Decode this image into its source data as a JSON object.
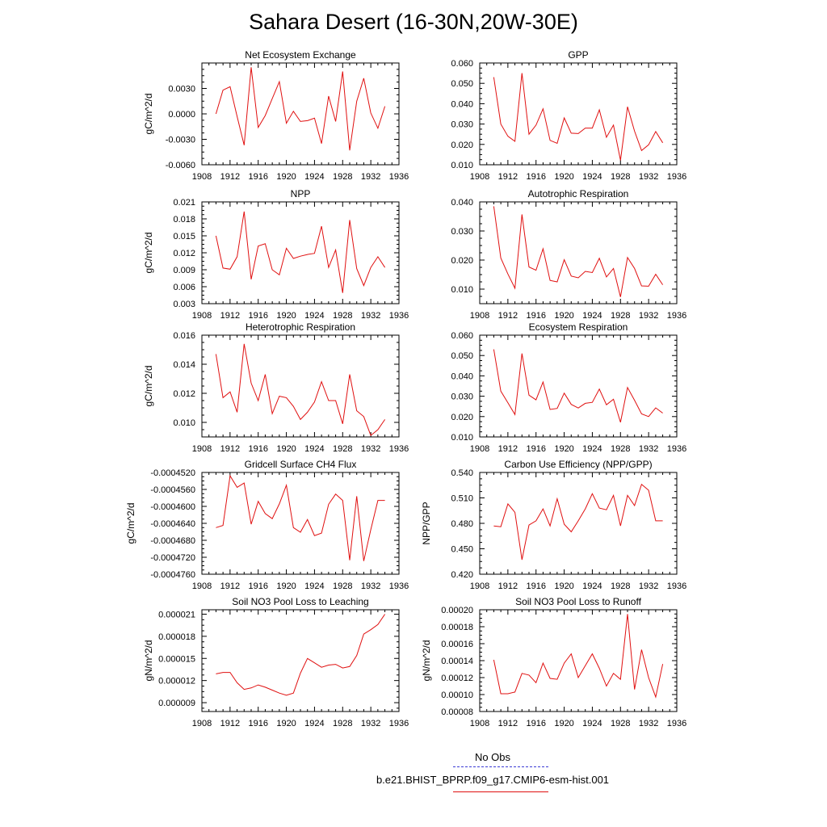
{
  "title": "Sahara Desert (16-30N,20W-30E)",
  "legend": {
    "obs_label": "No Obs",
    "case_label": "b.e21.BHIST_BPRP.f09_g17.CMIP6-esm-hist.001",
    "obs_color": "#3b3bd6",
    "case_color": "#e01010"
  },
  "chart_data": [
    {
      "type": "line",
      "title": "Net Ecosystem Exchange",
      "ylabel": "gC/m^2/d",
      "xlim": [
        1908,
        1936
      ],
      "ylim": [
        -0.006,
        0.006
      ],
      "xticks": [
        1908,
        1912,
        1916,
        1920,
        1924,
        1928,
        1932,
        1936
      ],
      "xtick_labels": [
        "1908",
        "1912",
        "1916",
        "1920",
        "1924",
        "1928",
        "1932",
        "1936"
      ],
      "yticks": [
        -0.006,
        -0.003,
        0.0,
        0.003
      ],
      "ytick_labels": [
        "-0.0060",
        "-0.0030",
        "0.0000",
        "0.0030"
      ],
      "x": [
        1910,
        1911,
        1912,
        1913,
        1914,
        1915,
        1916,
        1917,
        1918,
        1919,
        1920,
        1921,
        1922,
        1923,
        1924,
        1925,
        1926,
        1927,
        1928,
        1929,
        1930,
        1931,
        1932,
        1933,
        1934
      ],
      "values": [
        0.0,
        0.0028,
        0.0032,
        -0.0003,
        -0.0037,
        0.0055,
        -0.0016,
        -0.0002,
        0.0018,
        0.0038,
        -0.0011,
        0.0003,
        -0.0009,
        -0.0008,
        -0.0005,
        -0.0035,
        0.0021,
        -0.0009,
        0.005,
        -0.0043,
        0.0015,
        0.0042,
        0.0001,
        -0.0017,
        0.0009
      ],
      "color": "#e01010"
    },
    {
      "type": "line",
      "title": "GPP",
      "ylabel": "",
      "xlim": [
        1908,
        1936
      ],
      "ylim": [
        0.01,
        0.06
      ],
      "xticks": [
        1908,
        1912,
        1916,
        1920,
        1924,
        1928,
        1932,
        1936
      ],
      "xtick_labels": [
        "1908",
        "1912",
        "1916",
        "1920",
        "1924",
        "1928",
        "1932",
        "1936"
      ],
      "yticks": [
        0.01,
        0.02,
        0.03,
        0.04,
        0.05,
        0.06
      ],
      "ytick_labels": [
        "0.010",
        "0.020",
        "0.030",
        "0.040",
        "0.050",
        "0.060"
      ],
      "x": [
        1910,
        1911,
        1912,
        1913,
        1914,
        1915,
        1916,
        1917,
        1918,
        1919,
        1920,
        1921,
        1922,
        1923,
        1924,
        1925,
        1926,
        1927,
        1928,
        1929,
        1930,
        1931,
        1932,
        1933,
        1934
      ],
      "values": [
        0.053,
        0.03,
        0.024,
        0.0215,
        0.055,
        0.025,
        0.0295,
        0.0375,
        0.022,
        0.0205,
        0.033,
        0.0255,
        0.0253,
        0.028,
        0.028,
        0.037,
        0.0235,
        0.0295,
        0.0122,
        0.0385,
        0.0265,
        0.017,
        0.0198,
        0.0263,
        0.0208
      ],
      "color": "#e01010"
    },
    {
      "type": "line",
      "title": "NPP",
      "ylabel": "gC/m^2/d",
      "xlim": [
        1908,
        1936
      ],
      "ylim": [
        0.003,
        0.021
      ],
      "xticks": [
        1908,
        1912,
        1916,
        1920,
        1924,
        1928,
        1932,
        1936
      ],
      "xtick_labels": [
        "1908",
        "1912",
        "1916",
        "1920",
        "1924",
        "1928",
        "1932",
        "1936"
      ],
      "yticks": [
        0.003,
        0.006,
        0.009,
        0.012,
        0.015,
        0.018,
        0.021
      ],
      "ytick_labels": [
        "0.003",
        "0.006",
        "0.009",
        "0.012",
        "0.015",
        "0.018",
        "0.021"
      ],
      "x": [
        1910,
        1911,
        1912,
        1913,
        1914,
        1915,
        1916,
        1917,
        1918,
        1919,
        1920,
        1921,
        1922,
        1923,
        1924,
        1925,
        1926,
        1927,
        1928,
        1929,
        1930,
        1931,
        1932,
        1933,
        1934
      ],
      "values": [
        0.015,
        0.0093,
        0.0091,
        0.0113,
        0.0193,
        0.0073,
        0.0132,
        0.0136,
        0.009,
        0.0081,
        0.0128,
        0.011,
        0.0114,
        0.0117,
        0.0119,
        0.0167,
        0.0094,
        0.0125,
        0.0049,
        0.0178,
        0.0092,
        0.0062,
        0.0094,
        0.0113,
        0.0094
      ],
      "color": "#e01010"
    },
    {
      "type": "line",
      "title": "Autotrophic Respiration",
      "ylabel": "",
      "xlim": [
        1908,
        1936
      ],
      "ylim": [
        0.005,
        0.04
      ],
      "xticks": [
        1908,
        1912,
        1916,
        1920,
        1924,
        1928,
        1932,
        1936
      ],
      "xtick_labels": [
        "1908",
        "1912",
        "1916",
        "1920",
        "1924",
        "1928",
        "1932",
        "1936"
      ],
      "yticks": [
        0.01,
        0.02,
        0.03,
        0.04
      ],
      "ytick_labels": [
        "0.010",
        "0.020",
        "0.030",
        "0.040"
      ],
      "x": [
        1910,
        1911,
        1912,
        1913,
        1914,
        1915,
        1916,
        1917,
        1918,
        1919,
        1920,
        1921,
        1922,
        1923,
        1924,
        1925,
        1926,
        1927,
        1928,
        1929,
        1930,
        1931,
        1932,
        1933,
        1934
      ],
      "values": [
        0.0385,
        0.0207,
        0.0152,
        0.0103,
        0.0357,
        0.0176,
        0.0165,
        0.0239,
        0.013,
        0.0125,
        0.0201,
        0.0145,
        0.0139,
        0.0161,
        0.0157,
        0.0206,
        0.0142,
        0.0171,
        0.0073,
        0.0209,
        0.0171,
        0.0111,
        0.011,
        0.0151,
        0.0115
      ],
      "color": "#e01010"
    },
    {
      "type": "line",
      "title": "Heterotrophic Respiration",
      "ylabel": "gC/m^2/d",
      "xlim": [
        1908,
        1936
      ],
      "ylim": [
        0.009,
        0.016
      ],
      "xticks": [
        1908,
        1912,
        1916,
        1920,
        1924,
        1928,
        1932,
        1936
      ],
      "xtick_labels": [
        "1908",
        "1912",
        "1916",
        "1920",
        "1924",
        "1928",
        "1932",
        "1936"
      ],
      "yticks": [
        0.01,
        0.012,
        0.014,
        0.016
      ],
      "ytick_labels": [
        "0.010",
        "0.012",
        "0.014",
        "0.016"
      ],
      "x": [
        1910,
        1911,
        1912,
        1913,
        1914,
        1915,
        1916,
        1917,
        1918,
        1919,
        1920,
        1921,
        1922,
        1923,
        1924,
        1925,
        1926,
        1927,
        1928,
        1929,
        1930,
        1931,
        1932,
        1933,
        1934
      ],
      "values": [
        0.0147,
        0.0117,
        0.0121,
        0.0107,
        0.0154,
        0.0127,
        0.0115,
        0.0133,
        0.0106,
        0.0118,
        0.0117,
        0.0111,
        0.0102,
        0.0107,
        0.0114,
        0.0128,
        0.0115,
        0.0115,
        0.0099,
        0.0133,
        0.0108,
        0.0104,
        0.0091,
        0.0095,
        0.0102
      ],
      "color": "#e01010"
    },
    {
      "type": "line",
      "title": "Ecosystem Respiration",
      "ylabel": "",
      "xlim": [
        1908,
        1936
      ],
      "ylim": [
        0.01,
        0.06
      ],
      "xticks": [
        1908,
        1912,
        1916,
        1920,
        1924,
        1928,
        1932,
        1936
      ],
      "xtick_labels": [
        "1908",
        "1912",
        "1916",
        "1920",
        "1924",
        "1928",
        "1932",
        "1936"
      ],
      "yticks": [
        0.01,
        0.02,
        0.03,
        0.04,
        0.05,
        0.06
      ],
      "ytick_labels": [
        "0.010",
        "0.020",
        "0.030",
        "0.040",
        "0.050",
        "0.060"
      ],
      "x": [
        1910,
        1911,
        1912,
        1913,
        1914,
        1915,
        1916,
        1917,
        1918,
        1919,
        1920,
        1921,
        1922,
        1923,
        1924,
        1925,
        1926,
        1927,
        1928,
        1929,
        1930,
        1931,
        1932,
        1933,
        1934
      ],
      "values": [
        0.053,
        0.0325,
        0.0268,
        0.021,
        0.051,
        0.0305,
        0.0282,
        0.037,
        0.0235,
        0.024,
        0.0315,
        0.026,
        0.0242,
        0.0265,
        0.027,
        0.0335,
        0.0258,
        0.0285,
        0.0172,
        0.0343,
        0.028,
        0.0213,
        0.02,
        0.0243,
        0.0217
      ],
      "color": "#e01010"
    },
    {
      "type": "line",
      "title": "Gridcell Surface CH4 Flux",
      "ylabel": "gC/m^2/d",
      "xlim": [
        1908,
        1936
      ],
      "ylim": [
        -0.000476,
        -0.000452
      ],
      "xticks": [
        1908,
        1912,
        1916,
        1920,
        1924,
        1928,
        1932,
        1936
      ],
      "xtick_labels": [
        "1908",
        "1912",
        "1916",
        "1920",
        "1924",
        "1928",
        "1932",
        "1936"
      ],
      "yticks": [
        -0.000476,
        -0.000472,
        -0.000468,
        -0.000464,
        -0.00046,
        -0.000456,
        -0.000452
      ],
      "ytick_labels": [
        "-0.0004760",
        "-0.0004720",
        "-0.0004680",
        "-0.0004640",
        "-0.0004600",
        "-0.0004560",
        "-0.0004520"
      ],
      "x": [
        1910,
        1911,
        1912,
        1913,
        1914,
        1915,
        1916,
        1917,
        1918,
        1919,
        1920,
        1921,
        1922,
        1923,
        1924,
        1925,
        1926,
        1927,
        1928,
        1929,
        1930,
        1931,
        1932,
        1933,
        1934
      ],
      "values": [
        -0.000465,
        -0.0004645,
        -0.0004528,
        -0.0004555,
        -0.0004545,
        -0.0004642,
        -0.0004588,
        -0.0004617,
        -0.0004629,
        -0.0004594,
        -0.000455,
        -0.000465,
        -0.0004661,
        -0.0004631,
        -0.0004669,
        -0.0004663,
        -0.0004595,
        -0.0004571,
        -0.0004586,
        -0.0004727,
        -0.0004576,
        -0.0004729,
        -0.0004655,
        -0.0004586,
        -0.0004586
      ],
      "color": "#e01010"
    },
    {
      "type": "line",
      "title": "Carbon Use Efficiency (NPP/GPP)",
      "ylabel": "NPP/GPP",
      "xlim": [
        1908,
        1936
      ],
      "ylim": [
        0.42,
        0.54
      ],
      "xticks": [
        1908,
        1912,
        1916,
        1920,
        1924,
        1928,
        1932,
        1936
      ],
      "xtick_labels": [
        "1908",
        "1912",
        "1916",
        "1920",
        "1924",
        "1928",
        "1932",
        "1936"
      ],
      "yticks": [
        0.42,
        0.45,
        0.48,
        0.51,
        0.54
      ],
      "ytick_labels": [
        "0.420",
        "0.450",
        "0.480",
        "0.510",
        "0.540"
      ],
      "x": [
        1910,
        1911,
        1912,
        1913,
        1914,
        1915,
        1916,
        1917,
        1918,
        1919,
        1920,
        1921,
        1922,
        1923,
        1924,
        1925,
        1926,
        1927,
        1928,
        1929,
        1930,
        1931,
        1932,
        1933,
        1934
      ],
      "values": [
        0.477,
        0.476,
        0.503,
        0.493,
        0.437,
        0.478,
        0.483,
        0.497,
        0.477,
        0.509,
        0.479,
        0.47,
        0.483,
        0.497,
        0.515,
        0.498,
        0.496,
        0.513,
        0.477,
        0.513,
        0.501,
        0.526,
        0.519,
        0.483,
        0.483
      ],
      "color": "#e01010"
    },
    {
      "type": "line",
      "title": "Soil NO3 Pool Loss to Leaching",
      "ylabel": "gN/m^2/d",
      "xlim": [
        1908,
        1936
      ],
      "ylim": [
        7.8e-06,
        2.16e-05
      ],
      "xticks": [
        1908,
        1912,
        1916,
        1920,
        1924,
        1928,
        1932,
        1936
      ],
      "xtick_labels": [
        "1908",
        "1912",
        "1916",
        "1920",
        "1924",
        "1928",
        "1932",
        "1936"
      ],
      "yticks": [
        9e-06,
        1.2e-05,
        1.5e-05,
        1.8e-05,
        2.1e-05
      ],
      "ytick_labels": [
        "0.000009",
        "0.000012",
        "0.000015",
        "0.000018",
        "0.000021"
      ],
      "x": [
        1910,
        1911,
        1912,
        1913,
        1914,
        1915,
        1916,
        1917,
        1918,
        1919,
        1920,
        1921,
        1922,
        1923,
        1924,
        1925,
        1926,
        1927,
        1928,
        1929,
        1930,
        1931,
        1932,
        1933,
        1934
      ],
      "values": [
        1.29e-05,
        1.31e-05,
        1.31e-05,
        1.17e-05,
        1.08e-05,
        1.1e-05,
        1.14e-05,
        1.11e-05,
        1.07e-05,
        1.03e-05,
        1e-05,
        1.03e-05,
        1.3e-05,
        1.5e-05,
        1.44e-05,
        1.38e-05,
        1.41e-05,
        1.42e-05,
        1.37e-05,
        1.39e-05,
        1.54e-05,
        1.83e-05,
        1.89e-05,
        1.96e-05,
        2.1e-05
      ],
      "color": "#e01010"
    },
    {
      "type": "line",
      "title": "Soil NO3 Pool Loss to Runoff",
      "ylabel": "gN/m^2/d",
      "xlim": [
        1908,
        1936
      ],
      "ylim": [
        8e-05,
        0.0002
      ],
      "xticks": [
        1908,
        1912,
        1916,
        1920,
        1924,
        1928,
        1932,
        1936
      ],
      "xtick_labels": [
        "1908",
        "1912",
        "1916",
        "1920",
        "1924",
        "1928",
        "1932",
        "1936"
      ],
      "yticks": [
        8e-05,
        0.0001,
        0.00012,
        0.00014,
        0.00016,
        0.00018,
        0.0002
      ],
      "ytick_labels": [
        "0.00008",
        "0.00010",
        "0.00012",
        "0.00014",
        "0.00016",
        "0.00018",
        "0.00020"
      ],
      "x": [
        1910,
        1911,
        1912,
        1913,
        1914,
        1915,
        1916,
        1917,
        1918,
        1919,
        1920,
        1921,
        1922,
        1923,
        1924,
        1925,
        1926,
        1927,
        1928,
        1929,
        1930,
        1931,
        1932,
        1933,
        1934
      ],
      "values": [
        0.000141,
        0.000101,
        0.000101,
        0.000103,
        0.000125,
        0.000123,
        0.000114,
        0.000137,
        0.000119,
        0.000118,
        0.000137,
        0.000148,
        0.00012,
        0.000134,
        0.000148,
        0.000131,
        0.00011,
        0.000125,
        0.000118,
        0.000195,
        0.000106,
        0.000153,
        0.00012,
        9.7e-05,
        0.000136
      ],
      "color": "#e01010"
    }
  ]
}
